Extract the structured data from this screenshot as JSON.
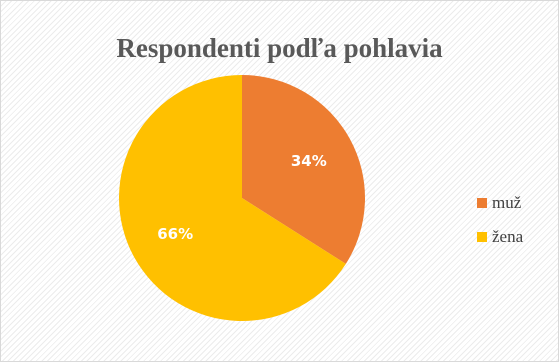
{
  "chart_data": {
    "type": "pie",
    "title": "Respondenti podľa pohlavia",
    "categories": [
      "muž",
      "žena"
    ],
    "values": [
      34,
      66
    ],
    "value_labels": [
      "34%",
      "66%"
    ],
    "colors": [
      "#ED7D31",
      "#FFC000"
    ],
    "start_angle_deg": 0,
    "direction": "clockwise",
    "legend_position": "right"
  }
}
